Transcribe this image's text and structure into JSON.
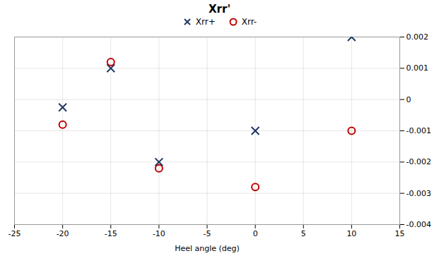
{
  "chart_data": {
    "type": "scatter",
    "title": "Xrr'",
    "xlabel": "Heel angle (deg)",
    "x": [
      -20,
      -15,
      -10,
      0,
      10
    ],
    "series": [
      {
        "name": "Xrr+",
        "color": "#1F3864",
        "marker": "x",
        "values": [
          -0.00025,
          0.001,
          -0.002,
          -0.001,
          0.002
        ]
      },
      {
        "name": "Xrr-",
        "color": "#C00000",
        "marker": "o",
        "values": [
          -0.0008,
          0.0012,
          -0.0022,
          -0.0028,
          -0.001
        ]
      }
    ],
    "xlim": [
      -25,
      15
    ],
    "xticks": [
      -25,
      -20,
      -15,
      -10,
      -5,
      0,
      5,
      10,
      15
    ],
    "ylim": [
      -0.004,
      0.002
    ],
    "yticks": [
      -0.004,
      -0.003,
      -0.002,
      -0.001,
      0,
      0.001,
      0.002
    ],
    "grid": true,
    "legend": "top"
  }
}
